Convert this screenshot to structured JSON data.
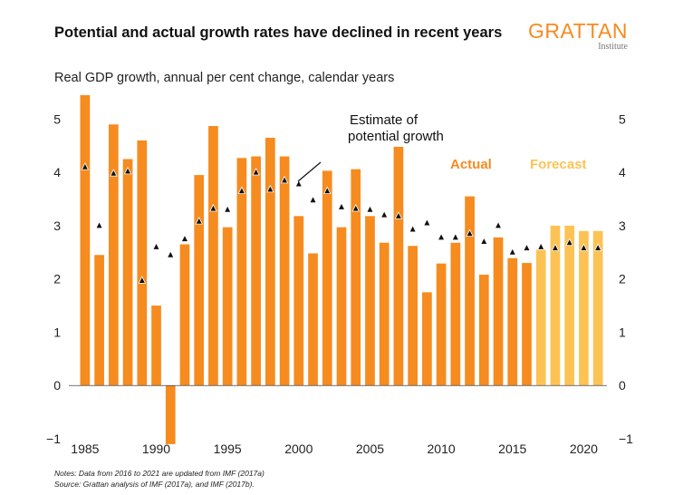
{
  "title": "Potential and actual growth rates have declined in recent years",
  "subtitle": "Real GDP growth, annual per cent change, calendar years",
  "logo": {
    "name": "GRATTAN",
    "sub": "Institute"
  },
  "notes": {
    "line1": "Notes: Data from 2016 to 2021 are updated from IMF (2017a)",
    "line2": "Source: Grattan analysis of IMF (2017a), and IMF (2017b)."
  },
  "chart_data": {
    "type": "bar",
    "title": "Potential and actual growth rates have declined in recent years",
    "subtitle": "Real GDP growth, annual per cent change, calendar years",
    "ylim": [
      -1,
      5.5
    ],
    "yticks": [
      -1,
      0,
      1,
      2,
      3,
      4,
      5
    ],
    "xticks": [
      1985,
      1990,
      1995,
      2000,
      2005,
      2010,
      2015,
      2020
    ],
    "years": [
      1985,
      1986,
      1987,
      1988,
      1989,
      1990,
      1991,
      1992,
      1993,
      1994,
      1995,
      1996,
      1997,
      1998,
      1999,
      2000,
      2001,
      2002,
      2003,
      2004,
      2005,
      2006,
      2007,
      2008,
      2009,
      2010,
      2011,
      2012,
      2013,
      2014,
      2015,
      2016,
      2017,
      2018,
      2019,
      2020,
      2021
    ],
    "series": [
      {
        "name": "Actual",
        "color": "#f68b1f",
        "x": [
          1985,
          1986,
          1987,
          1988,
          1989,
          1990,
          1991,
          1992,
          1993,
          1994,
          1995,
          1996,
          1997,
          1998,
          1999,
          2000,
          2001,
          2002,
          2003,
          2004,
          2005,
          2006,
          2007,
          2008,
          2009,
          2010,
          2011,
          2012,
          2013,
          2014,
          2015,
          2016
        ],
        "values": [
          5.45,
          2.45,
          4.9,
          4.25,
          4.6,
          1.5,
          -1.1,
          2.65,
          3.95,
          4.87,
          2.97,
          4.27,
          4.3,
          4.65,
          4.3,
          3.18,
          2.48,
          4.03,
          2.97,
          4.06,
          3.18,
          2.68,
          4.48,
          2.62,
          1.75,
          2.29,
          2.68,
          3.55,
          2.08,
          2.78,
          2.39,
          2.3
        ]
      },
      {
        "name": "Forecast",
        "color": "#fcc354",
        "x": [
          2017,
          2018,
          2019,
          2020,
          2021
        ],
        "values": [
          2.55,
          3.0,
          3.0,
          2.9,
          2.9
        ]
      },
      {
        "name": "Estimate of potential growth",
        "type": "scatter",
        "color": "#111111",
        "x": [
          1985,
          1986,
          1987,
          1988,
          1989,
          1990,
          1991,
          1992,
          1993,
          1994,
          1995,
          1996,
          1997,
          1998,
          1999,
          2000,
          2001,
          2002,
          2003,
          2004,
          2005,
          2006,
          2007,
          2008,
          2009,
          2010,
          2011,
          2012,
          2013,
          2014,
          2015,
          2016,
          2017,
          2018,
          2019,
          2020,
          2021
        ],
        "values": [
          4.1,
          3.0,
          3.98,
          4.02,
          1.97,
          2.6,
          2.45,
          2.75,
          3.08,
          3.32,
          3.3,
          3.65,
          4.0,
          3.68,
          3.85,
          3.78,
          3.48,
          3.65,
          3.35,
          3.32,
          3.3,
          3.2,
          3.18,
          2.93,
          3.05,
          2.78,
          2.78,
          2.85,
          2.7,
          3.0,
          2.5,
          2.58,
          2.6,
          2.58,
          2.68,
          2.58,
          2.58
        ]
      }
    ],
    "annotations": {
      "potential_line1": "Estimate of",
      "potential_line2": "potential growth",
      "actual": "Actual",
      "forecast": "Forecast"
    },
    "grid": false,
    "axes": "left and right"
  }
}
